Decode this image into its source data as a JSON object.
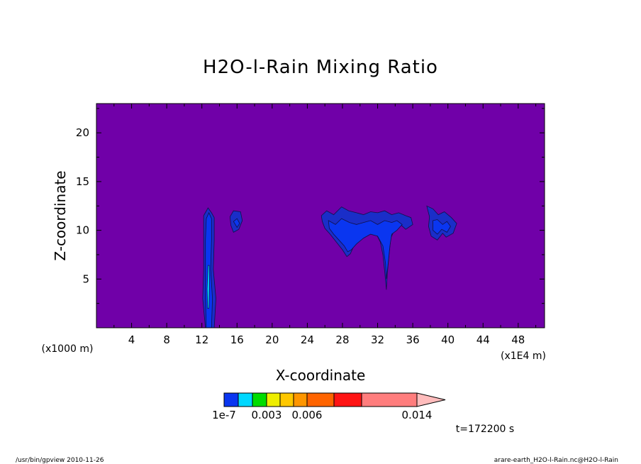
{
  "chart_data": {
    "type": "heatmap",
    "title": "H2O-l-Rain Mixing Ratio",
    "xlabel": "X-coordinate",
    "ylabel": "Z-coordinate",
    "x_unit_left": "(x1000 m)",
    "x_unit_right": "(x1E4 m)",
    "xlim": [
      0,
      51
    ],
    "ylim": [
      0,
      23
    ],
    "x_ticks": [
      "4",
      "8",
      "12",
      "16",
      "20",
      "24",
      "28",
      "32",
      "36",
      "40",
      "44",
      "48"
    ],
    "y_ticks": [
      "5",
      "10",
      "15",
      "20"
    ],
    "background_color": "#7000a8",
    "colorbar": {
      "labels": [
        {
          "text": "1e-7",
          "value": 1e-07
        },
        {
          "text": "0.003",
          "value": 0.003
        },
        {
          "text": "0.006",
          "value": 0.006
        },
        {
          "text": "0.014",
          "value": 0.014
        }
      ],
      "colors": [
        "#0a36f0",
        "#00d8ff",
        "#00dd00",
        "#eeee00",
        "#ffc800",
        "#ff9600",
        "#ff6400",
        "#ff1414",
        "#ff7d7d",
        "#ffbcbc"
      ]
    },
    "time_label": "t=172200 s",
    "regions": [
      {
        "level": 1,
        "polygon": [
          [
            12.4,
            0
          ],
          [
            12.1,
            3
          ],
          [
            12.2,
            6
          ],
          [
            12.2,
            9
          ],
          [
            12.2,
            11.5
          ],
          [
            12.7,
            12.3
          ],
          [
            13.1,
            11.8
          ],
          [
            13.4,
            11.3
          ],
          [
            13.4,
            9
          ],
          [
            13.3,
            6
          ],
          [
            13.6,
            3
          ],
          [
            13.4,
            0
          ]
        ]
      },
      {
        "level": 2,
        "polygon": [
          [
            12.5,
            0
          ],
          [
            12.4,
            3
          ],
          [
            12.4,
            6
          ],
          [
            12.4,
            9
          ],
          [
            12.5,
            11.2
          ],
          [
            12.8,
            11.8
          ],
          [
            13.1,
            11.2
          ],
          [
            13.1,
            9
          ],
          [
            13.0,
            6
          ],
          [
            13.2,
            3
          ],
          [
            13.1,
            0
          ]
        ]
      },
      {
        "level": 3,
        "polygon": [
          [
            12.65,
            2
          ],
          [
            12.6,
            4
          ],
          [
            12.7,
            6.4
          ],
          [
            12.85,
            6.4
          ],
          [
            12.85,
            4
          ],
          [
            12.8,
            2
          ]
        ]
      },
      {
        "level": 1,
        "polygon": [
          [
            15.2,
            11.4
          ],
          [
            15.6,
            12.0
          ],
          [
            16.4,
            11.9
          ],
          [
            16.6,
            11.0
          ],
          [
            16.2,
            10.1
          ],
          [
            15.6,
            9.8
          ],
          [
            15.3,
            10.5
          ]
        ]
      },
      {
        "level": 2,
        "polygon": [
          [
            15.6,
            10.9
          ],
          [
            16.0,
            11.2
          ],
          [
            16.3,
            10.7
          ],
          [
            16.0,
            10.3
          ]
        ]
      },
      {
        "level": 1,
        "polygon": [
          [
            25.6,
            11.5
          ],
          [
            26.2,
            12.0
          ],
          [
            27.0,
            11.6
          ],
          [
            27.9,
            12.4
          ],
          [
            28.7,
            12.0
          ],
          [
            29.6,
            11.8
          ],
          [
            30.4,
            11.6
          ],
          [
            31.2,
            11.9
          ],
          [
            32.0,
            11.8
          ],
          [
            32.8,
            12.0
          ],
          [
            33.6,
            11.6
          ],
          [
            34.4,
            11.8
          ],
          [
            35.2,
            11.5
          ],
          [
            35.8,
            11.3
          ],
          [
            36.0,
            10.6
          ],
          [
            35.2,
            10.1
          ],
          [
            34.6,
            10.6
          ],
          [
            34.0,
            10.2
          ],
          [
            33.5,
            9.2
          ],
          [
            33.3,
            7.5
          ],
          [
            33.1,
            5.5
          ],
          [
            33.0,
            3.9
          ],
          [
            32.8,
            5.8
          ],
          [
            32.6,
            7.5
          ],
          [
            32.3,
            8.8
          ],
          [
            31.8,
            9.7
          ],
          [
            31.0,
            9.8
          ],
          [
            30.2,
            9.4
          ],
          [
            29.4,
            8.6
          ],
          [
            28.9,
            7.6
          ],
          [
            28.5,
            7.3
          ],
          [
            28.0,
            8.0
          ],
          [
            27.3,
            8.8
          ],
          [
            26.6,
            9.6
          ],
          [
            26.0,
            10.2
          ],
          [
            25.7,
            10.9
          ]
        ]
      },
      {
        "level": 2,
        "polygon": [
          [
            26.4,
            11.0
          ],
          [
            27.2,
            10.6
          ],
          [
            27.9,
            11.2
          ],
          [
            28.8,
            10.8
          ],
          [
            29.6,
            10.6
          ],
          [
            30.4,
            10.8
          ],
          [
            31.2,
            11.0
          ],
          [
            32.0,
            10.6
          ],
          [
            32.8,
            11.0
          ],
          [
            33.6,
            10.8
          ],
          [
            34.2,
            11.0
          ],
          [
            34.8,
            10.6
          ],
          [
            34.2,
            10.0
          ],
          [
            33.6,
            9.6
          ],
          [
            33.4,
            8.4
          ],
          [
            33.2,
            6.6
          ],
          [
            33.0,
            5.0
          ],
          [
            32.9,
            6.6
          ],
          [
            32.6,
            8.4
          ],
          [
            32.0,
            9.4
          ],
          [
            31.2,
            9.6
          ],
          [
            30.4,
            9.2
          ],
          [
            29.6,
            8.6
          ],
          [
            29.0,
            8.0
          ],
          [
            28.6,
            7.8
          ],
          [
            28.2,
            8.4
          ],
          [
            27.6,
            9.0
          ],
          [
            27.0,
            9.6
          ],
          [
            26.5,
            10.2
          ]
        ]
      },
      {
        "level": 1,
        "polygon": [
          [
            37.6,
            12.5
          ],
          [
            38.3,
            12.2
          ],
          [
            38.9,
            11.6
          ],
          [
            39.6,
            11.9
          ],
          [
            40.4,
            11.3
          ],
          [
            41.0,
            10.7
          ],
          [
            40.6,
            9.7
          ],
          [
            39.8,
            9.3
          ],
          [
            39.4,
            9.7
          ],
          [
            38.8,
            9.0
          ],
          [
            38.1,
            9.4
          ],
          [
            37.8,
            10.4
          ],
          [
            37.9,
            11.4
          ]
        ]
      },
      {
        "level": 2,
        "polygon": [
          [
            38.3,
            11.0
          ],
          [
            38.8,
            11.1
          ],
          [
            39.4,
            10.6
          ],
          [
            39.9,
            10.9
          ],
          [
            40.3,
            10.4
          ],
          [
            39.9,
            9.8
          ],
          [
            39.3,
            10.1
          ],
          [
            38.8,
            9.6
          ],
          [
            38.3,
            10.0
          ]
        ]
      }
    ]
  },
  "footer": {
    "left": "/usr/bin/gpview   2010-11-26",
    "right": "arare-earth_H2O-l-Rain.nc@H2O-l-Rain"
  }
}
